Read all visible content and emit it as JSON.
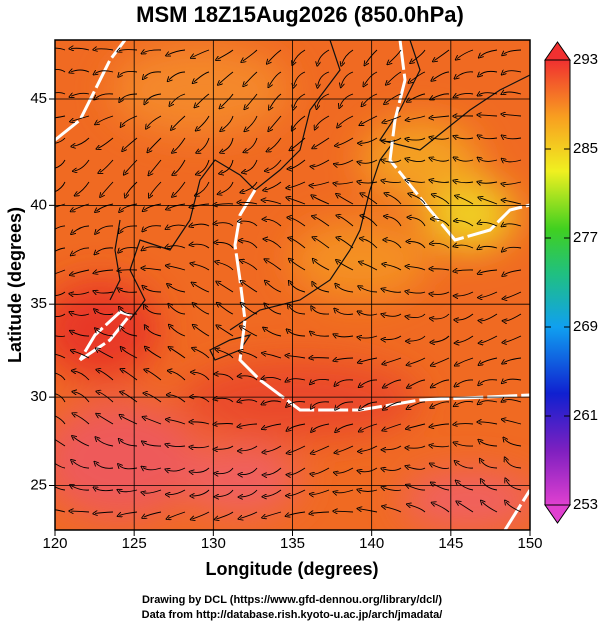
{
  "chart_data": {
    "type": "map",
    "title": "MSM 18Z15Aug2026 (850.0hPa)",
    "xlabel": "Longitude (degrees)",
    "ylabel": "Latitude  (degrees)",
    "xlim": [
      120,
      150
    ],
    "xticks": [
      120,
      125,
      130,
      135,
      140,
      145,
      150
    ],
    "ylim": [
      22.4,
      47.6
    ],
    "yticks": [
      25,
      30,
      35,
      40,
      45
    ],
    "clim": [
      253,
      293
    ],
    "cticks": [
      253,
      261,
      269,
      277,
      285,
      293
    ],
    "grid": true,
    "footer": [
      "Drawing by DCL (https://www.gfd-dennou.org/library/dcl/)",
      "Data from http://database.rish.kyoto-u.ac.jp/arch/jmadata/"
    ]
  }
}
